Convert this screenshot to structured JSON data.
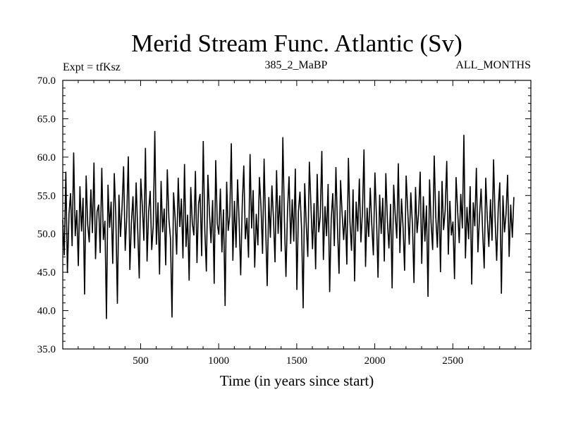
{
  "chart_data": {
    "type": "line",
    "title": "Merid Stream Func. Atlantic (Sv)",
    "subtitle_left": "Expt = tfKsz",
    "subtitle_center": "385_2_MaBP",
    "subtitle_right": "ALL_MONTHS",
    "xlabel": "Time (in years since start)",
    "ylabel": "",
    "xlim": [
      1,
      3000
    ],
    "ylim": [
      35,
      70
    ],
    "x_ticks": [
      500,
      1000,
      1500,
      2000,
      2500
    ],
    "x_tick_labels": [
      "500",
      "1000",
      "1500",
      "2000",
      "2500"
    ],
    "y_ticks": [
      35,
      40,
      45,
      50,
      55,
      60,
      65,
      70
    ],
    "y_tick_labels": [
      "35.0",
      "40.0",
      "45.0",
      "50.0",
      "55.0",
      "60.0",
      "65.0",
      "70.0"
    ],
    "grid": false,
    "legend": "none",
    "line_color": "#000000",
    "series": [
      {
        "x_start": 1,
        "x_step": 10,
        "values": [
          51.8,
          47.2,
          58.1,
          44.9,
          52.6,
          55.3,
          48.4,
          60.6,
          49.7,
          53.1,
          45.8,
          56.2,
          50.3,
          54.7,
          42.1,
          57.6,
          51.2,
          48.9,
          55.8,
          50.1,
          59.3,
          46.7,
          52.9,
          53.8,
          47.5,
          58.6,
          49.2,
          51.7,
          38.9,
          56.4,
          50.8,
          54.2,
          46.1,
          57.9,
          52.3,
          40.9,
          55.1,
          49.6,
          53.4,
          58.8,
          47.8,
          52.2,
          60.1,
          45.3,
          51.5,
          54.9,
          48.1,
          56.7,
          50.6,
          44.2,
          57.2,
          53.6,
          49.1,
          61.2,
          46.4,
          52.8,
          55.6,
          47.9,
          51.1,
          63.4,
          48.6,
          54.1,
          44.7,
          56.9,
          50.2,
          53.3,
          45.9,
          58.4,
          51.9,
          49.4,
          39.1,
          55.4,
          52.1,
          47.3,
          57.3,
          50.9,
          54.6,
          46.8,
          59.1,
          48.3,
          52.5,
          43.9,
          56.1,
          51.4,
          49.8,
          58.2,
          46.2,
          53.9,
          55.2,
          47.1,
          62.1,
          50.5,
          45.1,
          57.7,
          52.7,
          48.8,
          54.4,
          43.5,
          59.6,
          51.3,
          49.9,
          55.9,
          47.6,
          53.2,
          40.6,
          56.8,
          50.4,
          52.4,
          61.8,
          46.5,
          54.3,
          48.2,
          57.1,
          51.6,
          44.6,
          53.7,
          58.9,
          49.3,
          52.1,
          46.9,
          60.4,
          50.7,
          55.7,
          45.6,
          52.6,
          48.5,
          57.4,
          53.5,
          47.4,
          59.8,
          51.0,
          43.2,
          54.8,
          49.5,
          56.3,
          52.0,
          46.3,
          58.3,
          50.0,
          55.0,
          47.7,
          62.6,
          51.8,
          44.4,
          53.0,
          57.5,
          48.7,
          54.5,
          49.0,
          58.5,
          42.7,
          52.9,
          55.5,
          50.6,
          40.3,
          56.6,
          51.2,
          47.0,
          59.4,
          53.8,
          48.0,
          54.0,
          45.4,
          57.8,
          50.2,
          52.3,
          60.8,
          46.6,
          53.6,
          49.7,
          56.5,
          42.4,
          51.9,
          55.3,
          48.4,
          58.7,
          50.8,
          44.8,
          57.0,
          52.6,
          49.2,
          53.1,
          46.0,
          59.9,
          51.5,
          47.8,
          55.8,
          43.8,
          54.2,
          50.3,
          57.2,
          48.9,
          52.8,
          61.0,
          45.7,
          53.4,
          49.6,
          56.0,
          51.1,
          47.2,
          58.0,
          52.2,
          44.3,
          55.1,
          50.0,
          54.7,
          46.4,
          57.9,
          51.7,
          48.1,
          53.9,
          42.9,
          56.4,
          52.5,
          49.4,
          59.2,
          47.5,
          54.6,
          50.9,
          45.2,
          57.6,
          53.2,
          48.6,
          55.4,
          51.3,
          43.6,
          56.1,
          50.1,
          52.7,
          58.1,
          46.1,
          54.9,
          49.0,
          53.7,
          41.8,
          57.1,
          51.4,
          47.9,
          60.2,
          52.1,
          48.2,
          55.6,
          45.0,
          56.9,
          50.5,
          53.0,
          59.5,
          47.3,
          54.3,
          49.8,
          51.6,
          44.1,
          57.4,
          52.9,
          48.8,
          55.2,
          50.7,
          62.9,
          46.8,
          53.5,
          49.3,
          56.2,
          43.4,
          54.1,
          51.0,
          58.6,
          47.6,
          52.4,
          55.9,
          50.3,
          45.5,
          57.3,
          52.0,
          48.3,
          54.5,
          49.1,
          59.7,
          51.8,
          46.5,
          53.3,
          56.7,
          42.2,
          55.0,
          50.2,
          52.6,
          57.7,
          47.0,
          53.8,
          49.5,
          54.8
        ]
      }
    ]
  }
}
